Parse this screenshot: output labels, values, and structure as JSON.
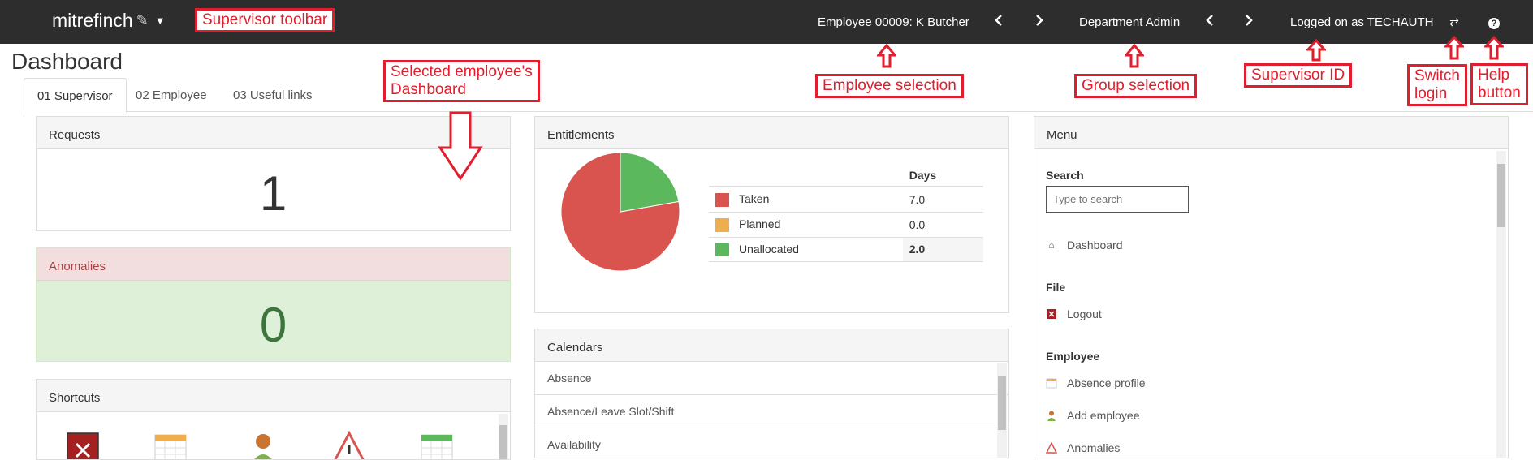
{
  "topbar": {
    "brand": "mitrefinch",
    "employee": "Employee 00009: K Butcher",
    "group": "Department Admin",
    "logged_on": "Logged on as TECHAUTH",
    "prev_icon": "chevron-left-icon",
    "next_icon": "chevron-right-icon"
  },
  "page": {
    "title": "Dashboard",
    "tabs": [
      {
        "label": "01 Supervisor"
      },
      {
        "label": "02 Employee"
      },
      {
        "label": "03 Useful links"
      }
    ]
  },
  "requests": {
    "title": "Requests",
    "count": "1"
  },
  "anomalies": {
    "title": "Anomalies",
    "count": "0"
  },
  "shortcuts": {
    "title": "Shortcuts"
  },
  "entitlements": {
    "title": "Entitlements",
    "col_header": "Days",
    "rows": [
      {
        "label": "Taken",
        "value": "7.0",
        "color": "#d9534f"
      },
      {
        "label": "Planned",
        "value": "0.0",
        "color": "#f0ad4e"
      },
      {
        "label": "Unallocated",
        "value": "2.0",
        "color": "#5cb85c"
      }
    ]
  },
  "calendars": {
    "title": "Calendars",
    "items": [
      "Absence",
      "Absence/Leave Slot/Shift",
      "Availability"
    ]
  },
  "menu": {
    "title": "Menu",
    "search_label": "Search",
    "search_placeholder": "Type to search",
    "dashboard": "Dashboard",
    "file_section": "File",
    "logout": "Logout",
    "employee_section": "Employee",
    "absence_profile": "Absence profile",
    "add_employee": "Add employee",
    "anomalies": "Anomalies"
  },
  "annotations": {
    "supervisor_toolbar": "Supervisor toolbar",
    "selected_dashboard_1": "Selected employee's",
    "selected_dashboard_2": "Dashboard",
    "employee_selection": "Employee selection",
    "group_selection": "Group selection",
    "supervisor_id": "Supervisor ID",
    "switch_login_1": "Switch",
    "switch_login_2": "login",
    "help_button_1": "Help",
    "help_button_2": "button"
  }
}
